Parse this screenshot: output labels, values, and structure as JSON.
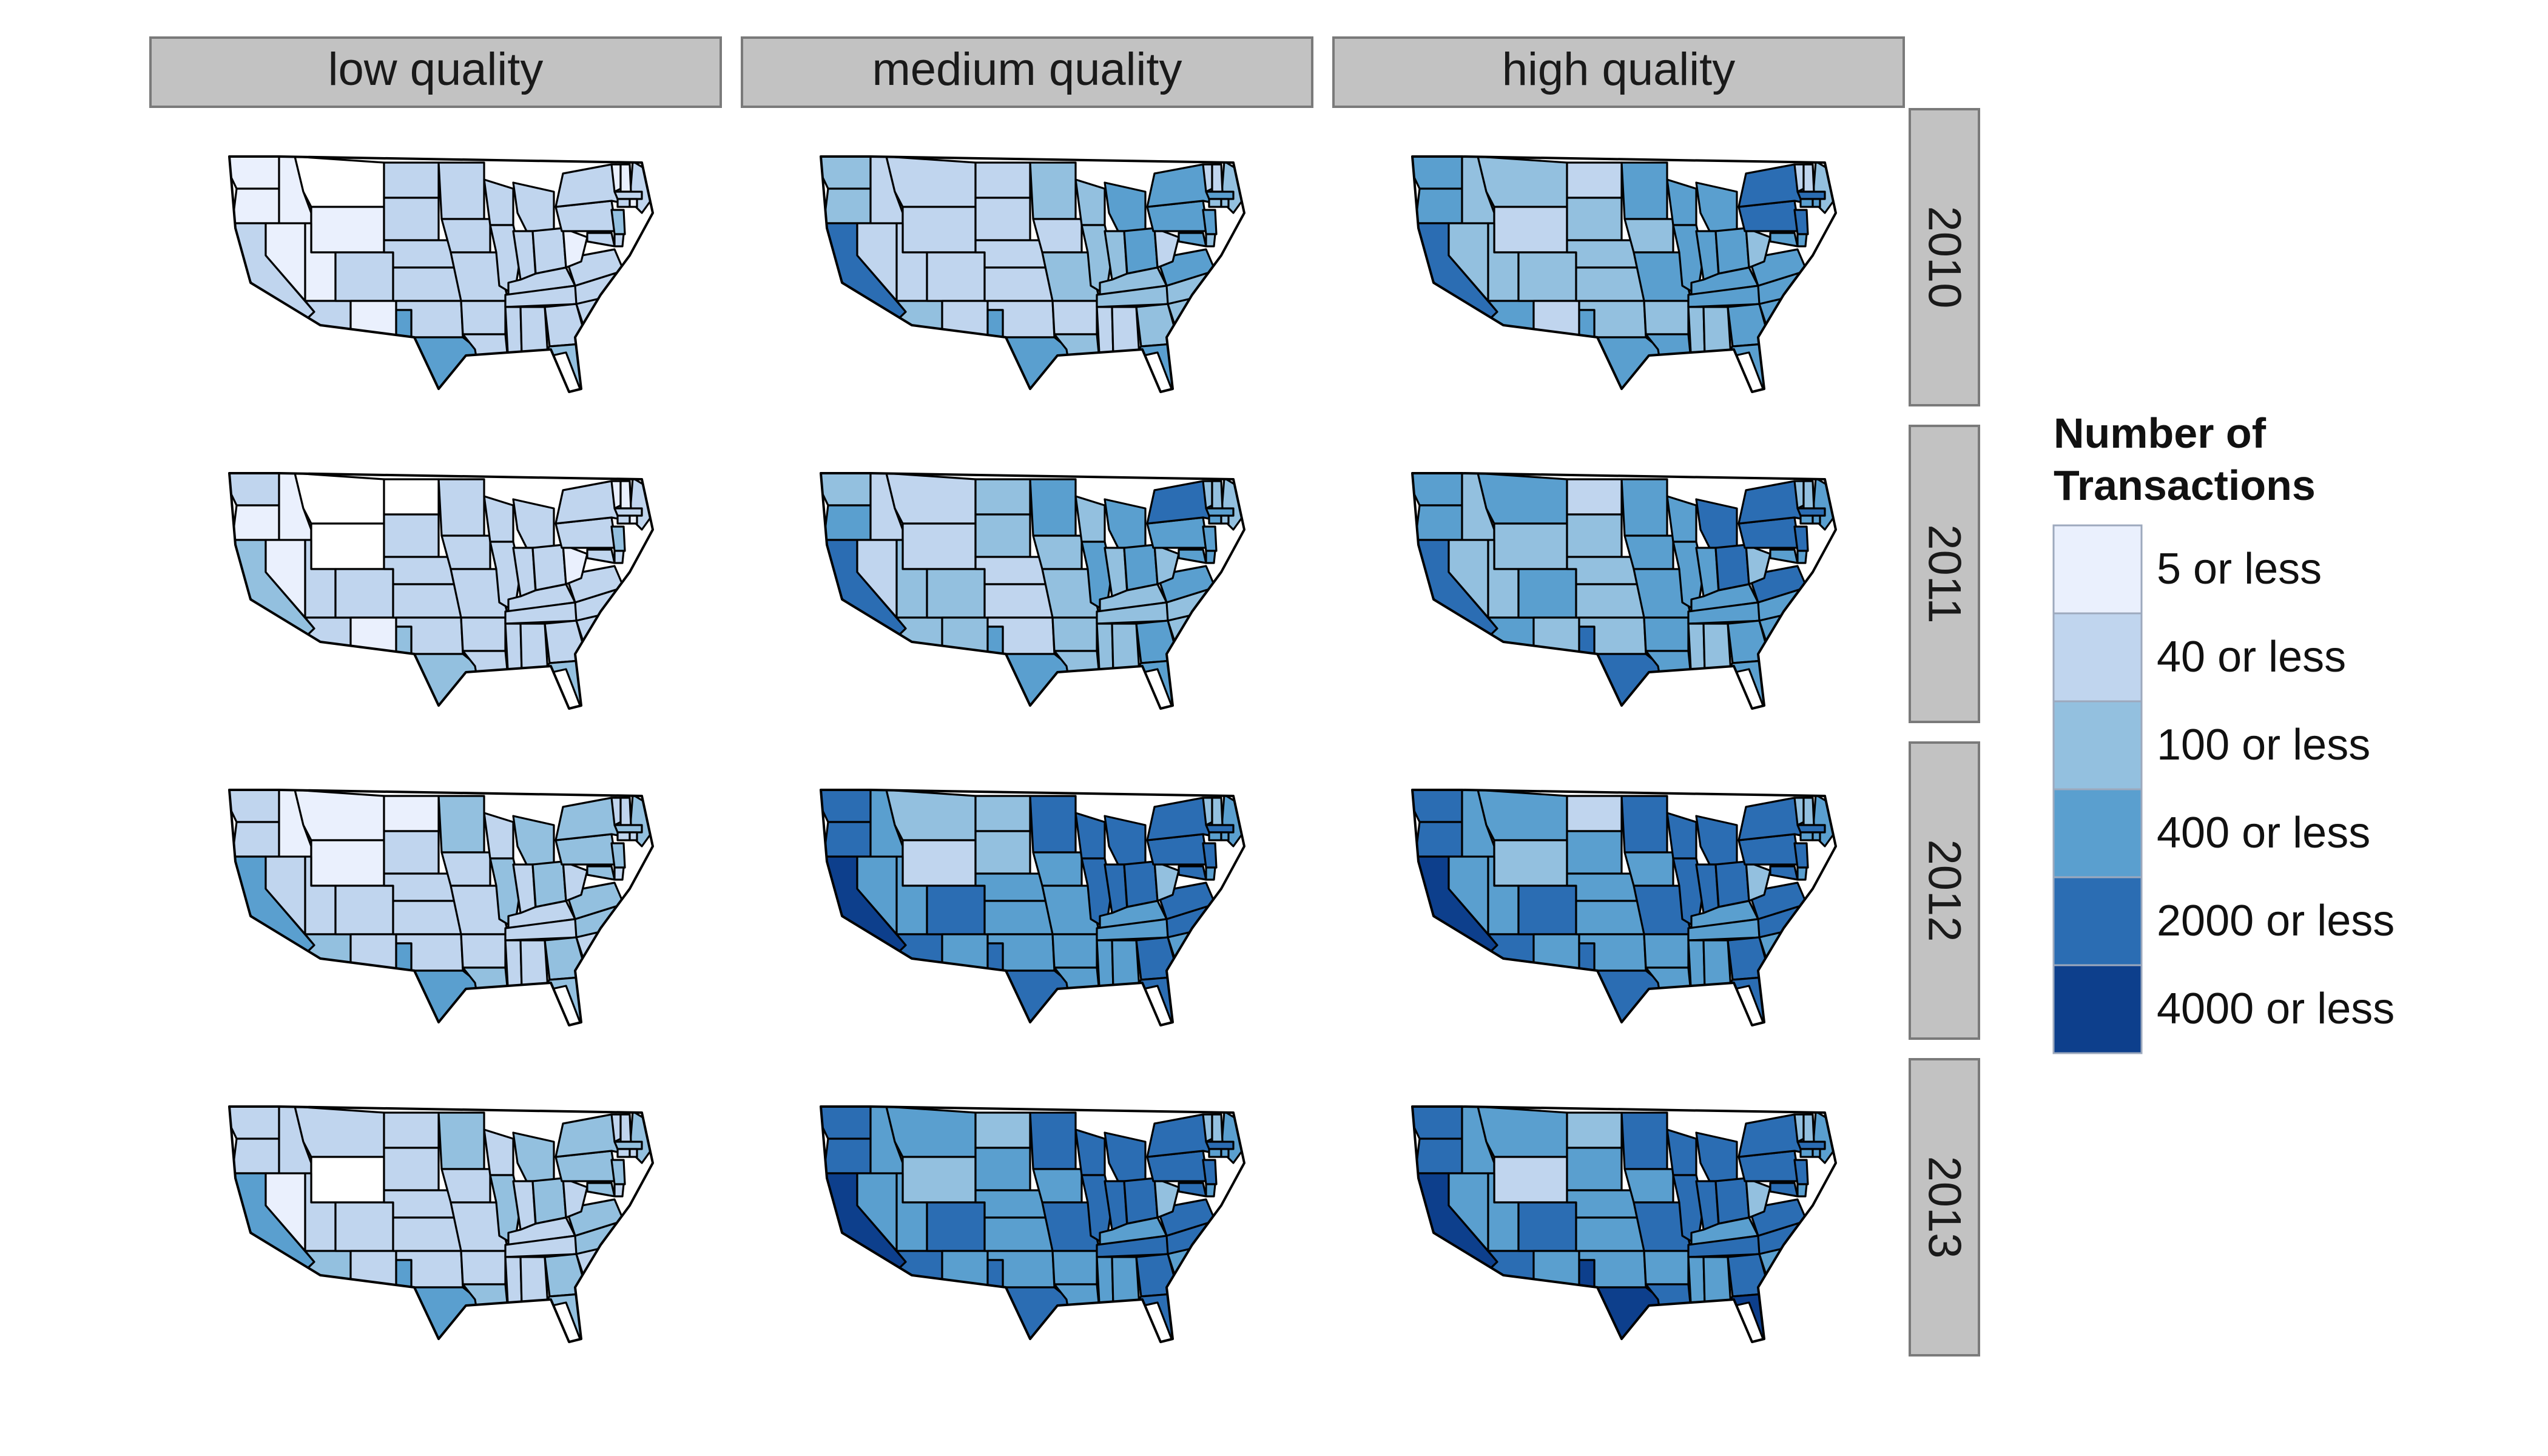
{
  "figure": {
    "columns": [
      "low quality",
      "medium quality",
      "high quality"
    ],
    "rows": [
      "2010",
      "2011",
      "2012",
      "2013"
    ]
  },
  "legend": {
    "title_line1": "Number of",
    "title_line2": "Transactions",
    "items": [
      {
        "label": "5 or less",
        "color": "#EAF0FD"
      },
      {
        "label": "40 or less",
        "color": "#C0D5EE"
      },
      {
        "label": "100 or less",
        "color": "#93C0DF"
      },
      {
        "label": "400 or less",
        "color": "#5A9FCF"
      },
      {
        "label": "2000 or less",
        "color": "#2B6DB3"
      },
      {
        "label": "4000 or less",
        "color": "#0D3F8C"
      }
    ]
  },
  "colors": {
    "strip_fill": "#C2C2C2",
    "strip_border": "#7A7A7A",
    "state_border": "#000000",
    "no_data_fill": "#FFFFFF"
  },
  "chart_data": {
    "type": "choropleth",
    "regions": [
      "WA",
      "OR",
      "CA",
      "ID",
      "NV",
      "MT",
      "WY",
      "UT",
      "AZ",
      "CO",
      "NM",
      "ND",
      "SD",
      "NE",
      "KS",
      "OK",
      "TX",
      "MN",
      "IA",
      "MO",
      "AR",
      "LA",
      "WI",
      "IL",
      "MI",
      "IN",
      "OH",
      "KY",
      "TN",
      "MS",
      "AL",
      "GA",
      "FL",
      "SC",
      "NC",
      "VA",
      "WV",
      "PA",
      "NY",
      "ME",
      "VT",
      "NH",
      "MA",
      "NJ",
      "MD",
      "DE",
      "CT",
      "RI"
    ],
    "panels": [
      {
        "row": "2010",
        "column": "low quality",
        "levels": [
          0,
          0,
          1,
          0,
          0,
          -1,
          0,
          0,
          1,
          1,
          0,
          1,
          1,
          1,
          1,
          1,
          3,
          1,
          1,
          1,
          1,
          1,
          1,
          1,
          1,
          1,
          1,
          1,
          1,
          1,
          1,
          1,
          2,
          1,
          1,
          1,
          0,
          1,
          1,
          1,
          0,
          0,
          1,
          2,
          1,
          1,
          1,
          0
        ]
      },
      {
        "row": "2010",
        "column": "medium quality",
        "levels": [
          2,
          2,
          4,
          1,
          1,
          1,
          1,
          1,
          2,
          1,
          1,
          1,
          1,
          1,
          1,
          1,
          3,
          2,
          1,
          2,
          1,
          2,
          2,
          2,
          3,
          2,
          3,
          2,
          2,
          1,
          1,
          2,
          3,
          2,
          2,
          3,
          1,
          3,
          3,
          2,
          1,
          1,
          3,
          3,
          3,
          2,
          2,
          2
        ]
      },
      {
        "row": "2010",
        "column": "high quality",
        "levels": [
          3,
          3,
          4,
          2,
          2,
          2,
          1,
          2,
          3,
          2,
          1,
          1,
          2,
          2,
          2,
          2,
          3,
          3,
          2,
          3,
          2,
          3,
          3,
          3,
          3,
          3,
          3,
          3,
          3,
          2,
          2,
          3,
          3,
          3,
          3,
          3,
          2,
          4,
          4,
          2,
          1,
          1,
          4,
          4,
          3,
          3,
          3,
          3
        ]
      },
      {
        "row": "2011",
        "column": "low quality",
        "levels": [
          1,
          0,
          2,
          0,
          0,
          -1,
          -1,
          1,
          1,
          1,
          0,
          -1,
          1,
          1,
          1,
          1,
          2,
          1,
          1,
          1,
          1,
          1,
          1,
          1,
          1,
          1,
          1,
          1,
          1,
          1,
          1,
          1,
          2,
          1,
          1,
          1,
          0,
          1,
          1,
          1,
          0,
          0,
          1,
          2,
          1,
          1,
          1,
          0
        ]
      },
      {
        "row": "2011",
        "column": "medium quality",
        "levels": [
          2,
          3,
          4,
          1,
          1,
          1,
          1,
          2,
          2,
          2,
          2,
          2,
          2,
          1,
          1,
          1,
          3,
          3,
          2,
          2,
          2,
          2,
          2,
          3,
          3,
          2,
          3,
          2,
          2,
          2,
          2,
          3,
          3,
          2,
          2,
          3,
          2,
          3,
          4,
          2,
          2,
          2,
          3,
          3,
          3,
          3,
          3,
          2
        ]
      },
      {
        "row": "2011",
        "column": "high quality",
        "levels": [
          3,
          3,
          4,
          2,
          2,
          3,
          2,
          2,
          3,
          3,
          2,
          1,
          2,
          2,
          2,
          2,
          4,
          3,
          3,
          3,
          3,
          3,
          3,
          3,
          4,
          3,
          4,
          3,
          3,
          2,
          2,
          3,
          3,
          3,
          3,
          4,
          2,
          4,
          4,
          3,
          2,
          2,
          4,
          4,
          3,
          3,
          3,
          3
        ]
      },
      {
        "row": "2012",
        "column": "low quality",
        "levels": [
          1,
          1,
          3,
          0,
          1,
          0,
          0,
          1,
          2,
          1,
          1,
          0,
          1,
          1,
          1,
          1,
          3,
          2,
          1,
          1,
          1,
          2,
          1,
          2,
          2,
          1,
          2,
          1,
          1,
          1,
          1,
          2,
          2,
          1,
          2,
          2,
          1,
          2,
          2,
          2,
          1,
          1,
          2,
          2,
          2,
          1,
          1,
          1
        ]
      },
      {
        "row": "2012",
        "column": "medium quality",
        "levels": [
          4,
          4,
          5,
          3,
          3,
          2,
          1,
          3,
          4,
          4,
          3,
          2,
          2,
          3,
          3,
          3,
          4,
          4,
          3,
          3,
          3,
          3,
          4,
          4,
          4,
          4,
          4,
          3,
          3,
          3,
          3,
          4,
          4,
          3,
          4,
          4,
          2,
          4,
          4,
          3,
          2,
          2,
          4,
          4,
          4,
          3,
          3,
          3
        ]
      },
      {
        "row": "2012",
        "column": "high quality",
        "levels": [
          4,
          4,
          5,
          3,
          3,
          3,
          2,
          3,
          4,
          4,
          3,
          1,
          3,
          3,
          3,
          3,
          4,
          4,
          3,
          4,
          3,
          3,
          4,
          4,
          4,
          4,
          4,
          3,
          3,
          3,
          3,
          4,
          4,
          3,
          4,
          4,
          2,
          4,
          4,
          3,
          2,
          2,
          4,
          4,
          4,
          3,
          3,
          3
        ]
      },
      {
        "row": "2013",
        "column": "low quality",
        "levels": [
          1,
          1,
          3,
          1,
          0,
          1,
          -1,
          1,
          2,
          1,
          1,
          1,
          1,
          1,
          1,
          1,
          3,
          2,
          1,
          1,
          1,
          2,
          1,
          2,
          2,
          1,
          2,
          1,
          1,
          1,
          1,
          2,
          2,
          1,
          2,
          2,
          1,
          2,
          2,
          2,
          1,
          1,
          2,
          2,
          2,
          1,
          1,
          1
        ]
      },
      {
        "row": "2013",
        "column": "medium quality",
        "levels": [
          4,
          4,
          5,
          3,
          3,
          3,
          2,
          3,
          4,
          4,
          3,
          2,
          3,
          3,
          3,
          3,
          4,
          4,
          3,
          4,
          3,
          3,
          4,
          4,
          4,
          4,
          4,
          3,
          4,
          3,
          3,
          4,
          4,
          3,
          4,
          4,
          2,
          4,
          4,
          3,
          2,
          2,
          4,
          4,
          4,
          3,
          3,
          3
        ]
      },
      {
        "row": "2013",
        "column": "high quality",
        "levels": [
          4,
          4,
          5,
          3,
          3,
          3,
          1,
          3,
          4,
          4,
          3,
          2,
          3,
          3,
          3,
          3,
          5,
          4,
          3,
          4,
          3,
          4,
          4,
          4,
          4,
          4,
          4,
          3,
          4,
          3,
          3,
          4,
          5,
          3,
          4,
          4,
          2,
          4,
          4,
          3,
          2,
          2,
          4,
          4,
          4,
          3,
          3,
          3
        ]
      }
    ]
  }
}
